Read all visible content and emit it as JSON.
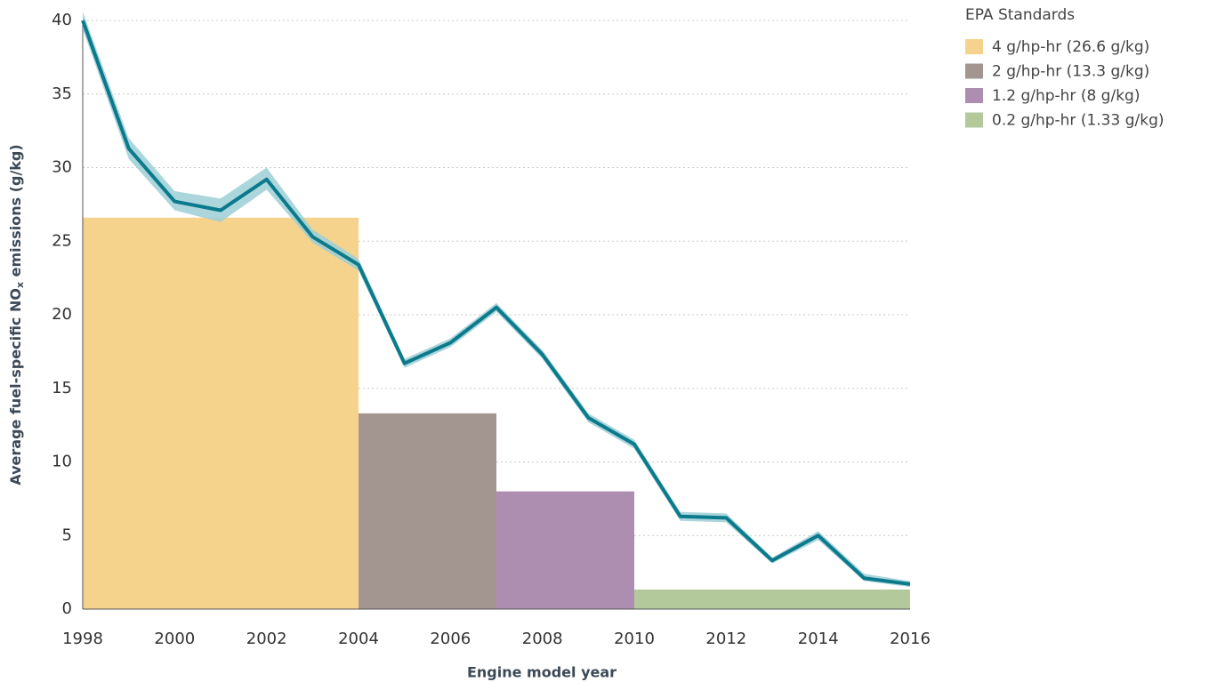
{
  "chart_data": {
    "type": "line",
    "y_label": {
      "before": "Average fuel-specific NO",
      "sub": "x",
      "after": " emissions (g/kg)"
    },
    "x_label": "Engine model year",
    "x": [
      1998,
      1999,
      2000,
      2001,
      2002,
      2003,
      2004,
      2005,
      2006,
      2007,
      2008,
      2009,
      2010,
      2011,
      2012,
      2013,
      2014,
      2015,
      2016
    ],
    "series": [
      {
        "color": "#0b7a8c",
        "band_color": "#9ccfd6",
        "values": [
          40,
          31.3,
          27.7,
          27.1,
          29.2,
          25.3,
          23.4,
          16.7,
          18.1,
          20.5,
          17.3,
          13.0,
          11.2,
          6.3,
          6.2,
          3.3,
          5.0,
          2.1,
          1.7
        ],
        "lower": [
          39.4,
          30.6,
          27.1,
          26.3,
          28.5,
          24.9,
          23.0,
          16.4,
          17.8,
          20.2,
          17.0,
          12.7,
          10.9,
          6.0,
          5.9,
          3.1,
          4.7,
          1.9,
          1.5
        ],
        "upper": [
          40.6,
          32.0,
          28.4,
          27.9,
          30.0,
          25.8,
          23.8,
          17.0,
          18.4,
          20.8,
          17.6,
          13.3,
          11.5,
          6.6,
          6.5,
          3.5,
          5.3,
          2.4,
          1.9
        ]
      }
    ],
    "standards_title": "EPA Standards",
    "standards": [
      {
        "name": "4 g/hp-hr (26.6 g/kg)",
        "color": "#f6d38d",
        "value": 26.6,
        "start": 1998,
        "end": 2004
      },
      {
        "name": "2 g/hp-hr (13.3 g/kg)",
        "color": "#a39690",
        "value": 13.3,
        "start": 2004,
        "end": 2007
      },
      {
        "name": "1.2 g/hp-hr (8 g/kg)",
        "color": "#ad8eb0",
        "value": 8,
        "start": 2007,
        "end": 2010
      },
      {
        "name": "0.2 g/hp-hr (1.33 g/kg)",
        "color": "#b3c99b",
        "value": 1.33,
        "start": 2010,
        "end": 2016
      }
    ],
    "xlim": [
      1998,
      2016
    ],
    "xticks": [
      1998,
      2000,
      2002,
      2004,
      2006,
      2008,
      2010,
      2012,
      2014,
      2016
    ],
    "ylim": [
      0,
      40
    ],
    "yticks": [
      0,
      5,
      10,
      15,
      20,
      25,
      30,
      35,
      40
    ],
    "grid": true
  }
}
